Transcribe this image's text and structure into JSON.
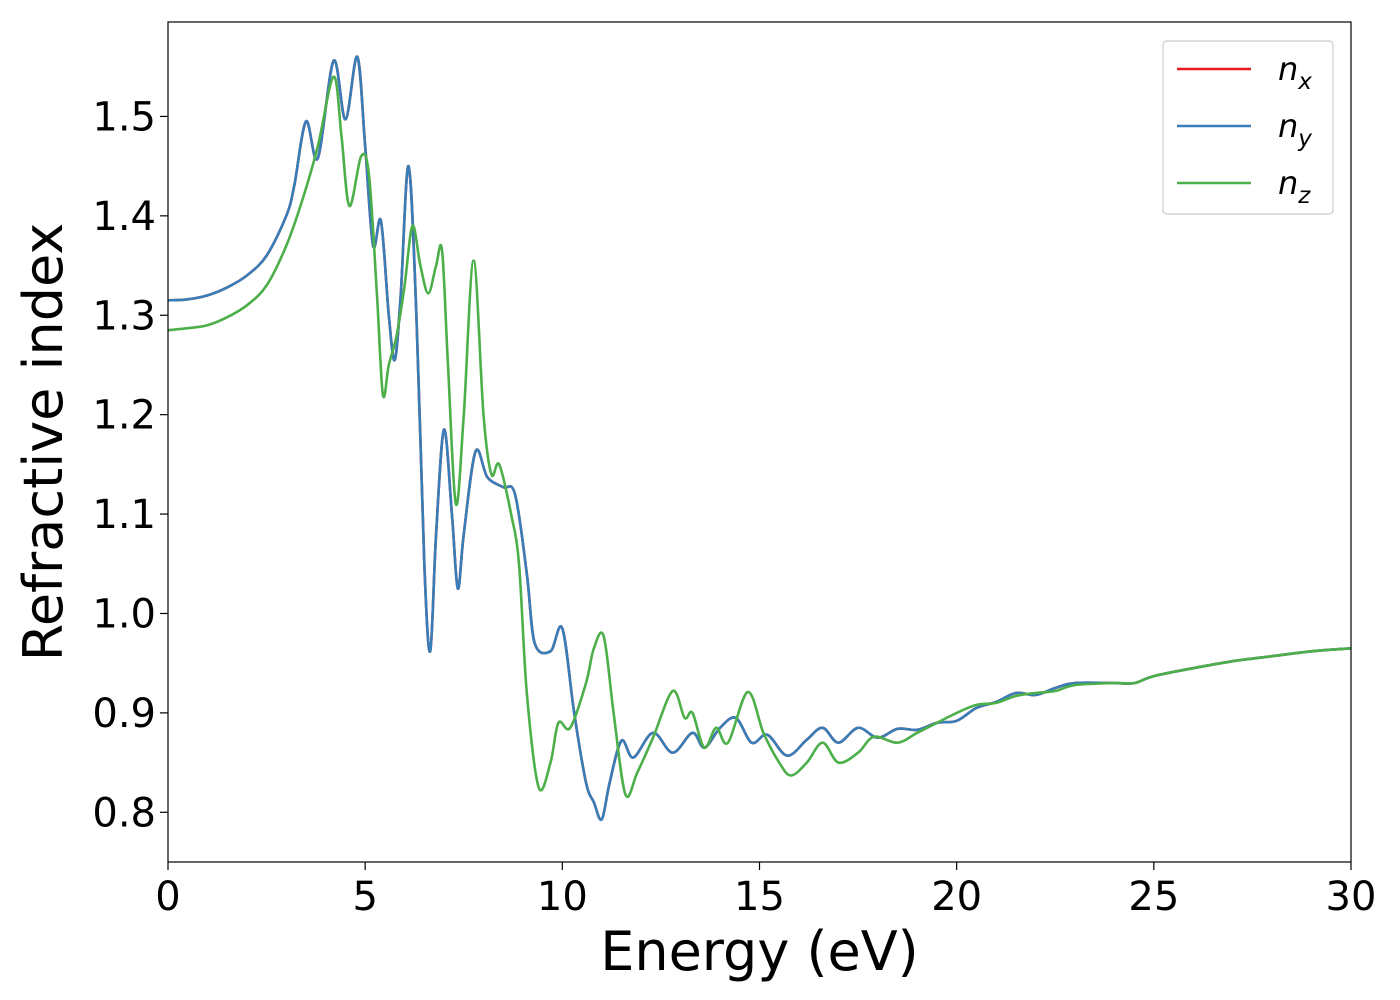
{
  "chart_data": {
    "type": "line",
    "title": "",
    "xlabel": "Energy (eV)",
    "ylabel": "Refractive index",
    "xlim": [
      0,
      30
    ],
    "ylim": [
      0.75,
      1.595
    ],
    "xticks": [
      0,
      5,
      10,
      15,
      20,
      25,
      30
    ],
    "yticks": [
      0.8,
      0.9,
      1.0,
      1.1,
      1.2,
      1.3,
      1.4,
      1.5
    ],
    "grid": false,
    "legend_position": "top-right",
    "series": [
      {
        "name": "n",
        "sub": "x",
        "color": "#e41a1c",
        "points": [
          [
            0,
            1.315
          ],
          [
            0.5,
            1.316
          ],
          [
            1,
            1.32
          ],
          [
            1.5,
            1.328
          ],
          [
            2,
            1.34
          ],
          [
            2.5,
            1.36
          ],
          [
            3,
            1.4
          ],
          [
            3.2,
            1.43
          ],
          [
            3.5,
            1.495
          ],
          [
            3.8,
            1.458
          ],
          [
            4.2,
            1.556
          ],
          [
            4.5,
            1.497
          ],
          [
            4.8,
            1.56
          ],
          [
            5,
            1.47
          ],
          [
            5.2,
            1.37
          ],
          [
            5.4,
            1.395
          ],
          [
            5.6,
            1.3
          ],
          [
            5.75,
            1.255
          ],
          [
            5.9,
            1.32
          ],
          [
            6.1,
            1.45
          ],
          [
            6.3,
            1.3
          ],
          [
            6.5,
            1.05
          ],
          [
            6.65,
            0.962
          ],
          [
            6.8,
            1.08
          ],
          [
            7,
            1.185
          ],
          [
            7.2,
            1.1
          ],
          [
            7.35,
            1.025
          ],
          [
            7.5,
            1.08
          ],
          [
            7.8,
            1.163
          ],
          [
            8.1,
            1.137
          ],
          [
            8.5,
            1.127
          ],
          [
            8.8,
            1.12
          ],
          [
            9.1,
            1.04
          ],
          [
            9.3,
            0.97
          ],
          [
            9.7,
            0.962
          ],
          [
            10,
            0.985
          ],
          [
            10.3,
            0.9
          ],
          [
            10.6,
            0.83
          ],
          [
            10.8,
            0.81
          ],
          [
            11,
            0.793
          ],
          [
            11.2,
            0.83
          ],
          [
            11.5,
            0.872
          ],
          [
            11.8,
            0.855
          ],
          [
            12.3,
            0.88
          ],
          [
            12.8,
            0.86
          ],
          [
            13.3,
            0.88
          ],
          [
            13.6,
            0.865
          ],
          [
            14,
            0.885
          ],
          [
            14.4,
            0.895
          ],
          [
            14.8,
            0.87
          ],
          [
            15.2,
            0.878
          ],
          [
            15.7,
            0.857
          ],
          [
            16.2,
            0.873
          ],
          [
            16.6,
            0.885
          ],
          [
            17,
            0.87
          ],
          [
            17.5,
            0.885
          ],
          [
            18,
            0.875
          ],
          [
            18.5,
            0.884
          ],
          [
            19,
            0.883
          ],
          [
            19.5,
            0.89
          ],
          [
            20,
            0.892
          ],
          [
            20.5,
            0.905
          ],
          [
            21,
            0.911
          ],
          [
            21.5,
            0.92
          ],
          [
            22,
            0.918
          ],
          [
            22.5,
            0.925
          ],
          [
            23,
            0.93
          ],
          [
            24,
            0.93
          ],
          [
            24.5,
            0.93
          ],
          [
            25,
            0.937
          ],
          [
            26,
            0.945
          ],
          [
            27,
            0.952
          ],
          [
            28,
            0.957
          ],
          [
            29,
            0.962
          ],
          [
            30,
            0.965
          ]
        ]
      },
      {
        "name": "n",
        "sub": "y",
        "color": "#377eb8",
        "points": [
          [
            0,
            1.315
          ],
          [
            0.5,
            1.316
          ],
          [
            1,
            1.32
          ],
          [
            1.5,
            1.328
          ],
          [
            2,
            1.34
          ],
          [
            2.5,
            1.36
          ],
          [
            3,
            1.4
          ],
          [
            3.2,
            1.43
          ],
          [
            3.5,
            1.495
          ],
          [
            3.8,
            1.458
          ],
          [
            4.2,
            1.556
          ],
          [
            4.5,
            1.497
          ],
          [
            4.8,
            1.56
          ],
          [
            5,
            1.47
          ],
          [
            5.2,
            1.37
          ],
          [
            5.4,
            1.395
          ],
          [
            5.6,
            1.3
          ],
          [
            5.75,
            1.255
          ],
          [
            5.9,
            1.32
          ],
          [
            6.1,
            1.45
          ],
          [
            6.3,
            1.3
          ],
          [
            6.5,
            1.05
          ],
          [
            6.65,
            0.962
          ],
          [
            6.8,
            1.08
          ],
          [
            7,
            1.185
          ],
          [
            7.2,
            1.1
          ],
          [
            7.35,
            1.025
          ],
          [
            7.5,
            1.08
          ],
          [
            7.8,
            1.163
          ],
          [
            8.1,
            1.137
          ],
          [
            8.5,
            1.127
          ],
          [
            8.8,
            1.12
          ],
          [
            9.1,
            1.04
          ],
          [
            9.3,
            0.97
          ],
          [
            9.7,
            0.962
          ],
          [
            10,
            0.985
          ],
          [
            10.3,
            0.9
          ],
          [
            10.6,
            0.83
          ],
          [
            10.8,
            0.81
          ],
          [
            11,
            0.793
          ],
          [
            11.2,
            0.83
          ],
          [
            11.5,
            0.872
          ],
          [
            11.8,
            0.855
          ],
          [
            12.3,
            0.88
          ],
          [
            12.8,
            0.86
          ],
          [
            13.3,
            0.88
          ],
          [
            13.6,
            0.865
          ],
          [
            14,
            0.885
          ],
          [
            14.4,
            0.895
          ],
          [
            14.8,
            0.87
          ],
          [
            15.2,
            0.878
          ],
          [
            15.7,
            0.857
          ],
          [
            16.2,
            0.873
          ],
          [
            16.6,
            0.885
          ],
          [
            17,
            0.87
          ],
          [
            17.5,
            0.885
          ],
          [
            18,
            0.875
          ],
          [
            18.5,
            0.884
          ],
          [
            19,
            0.883
          ],
          [
            19.5,
            0.89
          ],
          [
            20,
            0.892
          ],
          [
            20.5,
            0.905
          ],
          [
            21,
            0.911
          ],
          [
            21.5,
            0.92
          ],
          [
            22,
            0.918
          ],
          [
            22.5,
            0.925
          ],
          [
            23,
            0.93
          ],
          [
            24,
            0.93
          ],
          [
            24.5,
            0.93
          ],
          [
            25,
            0.937
          ],
          [
            26,
            0.945
          ],
          [
            27,
            0.952
          ],
          [
            28,
            0.957
          ],
          [
            29,
            0.962
          ],
          [
            30,
            0.965
          ]
        ]
      },
      {
        "name": "n",
        "sub": "z",
        "color": "#4daf4a",
        "points": [
          [
            0,
            1.285
          ],
          [
            0.5,
            1.287
          ],
          [
            1,
            1.29
          ],
          [
            1.5,
            1.298
          ],
          [
            2,
            1.31
          ],
          [
            2.5,
            1.33
          ],
          [
            3,
            1.37
          ],
          [
            3.4,
            1.415
          ],
          [
            3.8,
            1.47
          ],
          [
            4.2,
            1.54
          ],
          [
            4.4,
            1.48
          ],
          [
            4.6,
            1.41
          ],
          [
            4.9,
            1.46
          ],
          [
            5.1,
            1.44
          ],
          [
            5.3,
            1.32
          ],
          [
            5.45,
            1.22
          ],
          [
            5.6,
            1.25
          ],
          [
            5.8,
            1.28
          ],
          [
            6,
            1.33
          ],
          [
            6.2,
            1.39
          ],
          [
            6.4,
            1.35
          ],
          [
            6.6,
            1.322
          ],
          [
            6.8,
            1.35
          ],
          [
            6.95,
            1.365
          ],
          [
            7.1,
            1.25
          ],
          [
            7.3,
            1.11
          ],
          [
            7.5,
            1.2
          ],
          [
            7.75,
            1.355
          ],
          [
            8,
            1.2
          ],
          [
            8.2,
            1.14
          ],
          [
            8.4,
            1.15
          ],
          [
            8.7,
            1.1
          ],
          [
            8.9,
            1.05
          ],
          [
            9.1,
            0.92
          ],
          [
            9.4,
            0.825
          ],
          [
            9.7,
            0.85
          ],
          [
            9.9,
            0.89
          ],
          [
            10.2,
            0.885
          ],
          [
            10.6,
            0.93
          ],
          [
            10.8,
            0.965
          ],
          [
            11.05,
            0.977
          ],
          [
            11.3,
            0.9
          ],
          [
            11.6,
            0.818
          ],
          [
            11.9,
            0.84
          ],
          [
            12.3,
            0.875
          ],
          [
            12.8,
            0.922
          ],
          [
            13.1,
            0.895
          ],
          [
            13.3,
            0.9
          ],
          [
            13.6,
            0.865
          ],
          [
            13.9,
            0.885
          ],
          [
            14.2,
            0.87
          ],
          [
            14.7,
            0.921
          ],
          [
            15.1,
            0.88
          ],
          [
            15.5,
            0.85
          ],
          [
            15.8,
            0.837
          ],
          [
            16.2,
            0.85
          ],
          [
            16.6,
            0.87
          ],
          [
            17,
            0.85
          ],
          [
            17.5,
            0.86
          ],
          [
            17.9,
            0.876
          ],
          [
            18.5,
            0.87
          ],
          [
            19,
            0.88
          ],
          [
            19.5,
            0.89
          ],
          [
            20,
            0.9
          ],
          [
            20.5,
            0.908
          ],
          [
            21,
            0.91
          ],
          [
            21.5,
            0.917
          ],
          [
            22,
            0.92
          ],
          [
            22.5,
            0.922
          ],
          [
            23,
            0.928
          ],
          [
            24,
            0.93
          ],
          [
            24.5,
            0.93
          ],
          [
            25,
            0.937
          ],
          [
            26,
            0.945
          ],
          [
            27,
            0.952
          ],
          [
            28,
            0.957
          ],
          [
            29,
            0.962
          ],
          [
            30,
            0.965
          ]
        ]
      }
    ]
  }
}
